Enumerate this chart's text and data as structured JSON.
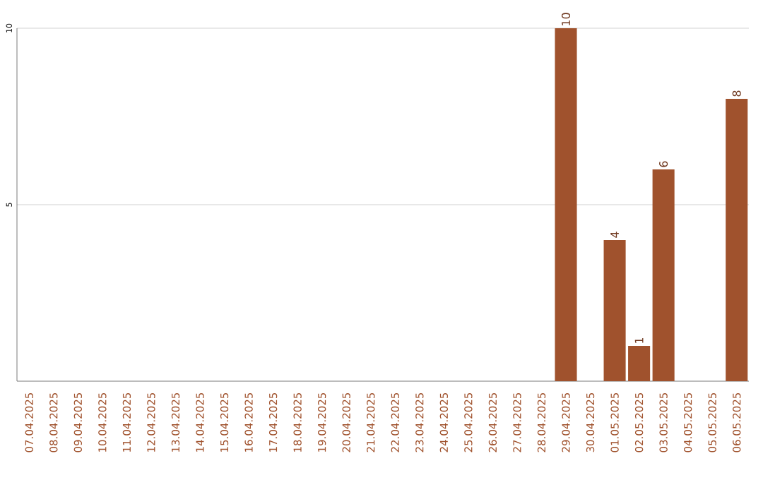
{
  "chart_data": {
    "type": "bar",
    "categories": [
      "07.04.2025",
      "08.04.2025",
      "09.04.2025",
      "10.04.2025",
      "11.04.2025",
      "12.04.2025",
      "13.04.2025",
      "14.04.2025",
      "15.04.2025",
      "16.04.2025",
      "17.04.2025",
      "18.04.2025",
      "19.04.2025",
      "20.04.2025",
      "21.04.2025",
      "22.04.2025",
      "23.04.2025",
      "24.04.2025",
      "25.04.2025",
      "26.04.2025",
      "27.04.2025",
      "28.04.2025",
      "29.04.2025",
      "30.04.2025",
      "01.05.2025",
      "02.05.2025",
      "03.05.2025",
      "04.05.2025",
      "05.05.2025",
      "06.05.2025"
    ],
    "values": [
      0,
      0,
      0,
      0,
      0,
      0,
      0,
      0,
      0,
      0,
      0,
      0,
      0,
      0,
      0,
      0,
      0,
      0,
      0,
      0,
      0,
      0,
      10,
      0,
      4,
      1,
      6,
      0,
      0,
      8
    ],
    "value_labels": [
      null,
      null,
      null,
      null,
      null,
      null,
      null,
      null,
      null,
      null,
      null,
      null,
      null,
      null,
      null,
      null,
      null,
      null,
      null,
      null,
      null,
      null,
      "10",
      null,
      "4",
      "1",
      "6",
      null,
      null,
      "8"
    ],
    "color": "#a0522d",
    "ylim": [
      0,
      10
    ],
    "yticks": [
      5,
      10
    ],
    "grid": "y"
  }
}
